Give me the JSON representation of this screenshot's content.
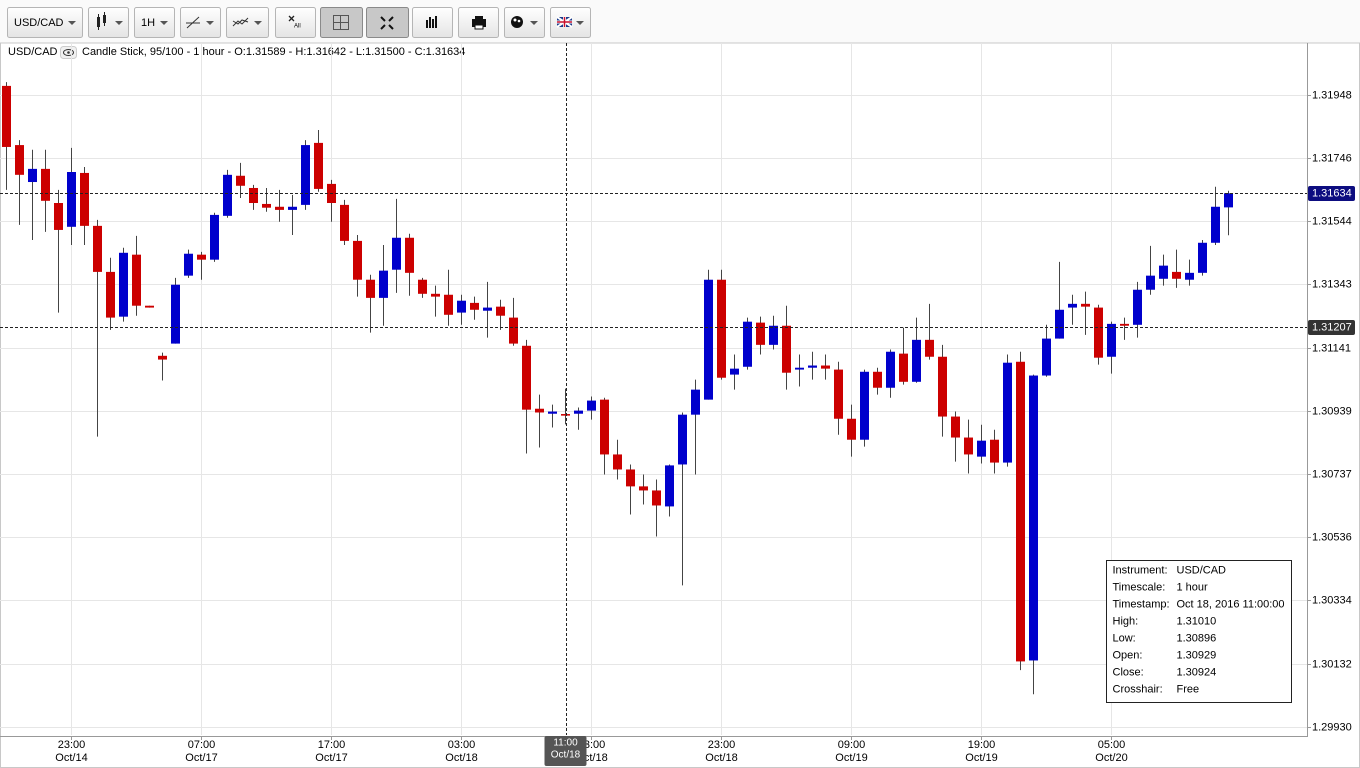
{
  "toolbar": {
    "instrument": "USD/CAD",
    "timeframe": "1H",
    "clear_label": "All"
  },
  "chart_data": {
    "type": "candlestick",
    "instrument": "USD/CAD",
    "subtitle": "Candle Stick, 95/100 - 1 hour - O:1.31589 - H:1.31642 - L:1.31500 - C:1.31634",
    "up_color": "#0000cc",
    "down_color": "#cc0000",
    "wick_color": "#444444",
    "open": [
      1.31977,
      1.31788,
      1.3167,
      1.31712,
      1.31603,
      1.31527,
      1.31699,
      1.3153,
      1.31383,
      1.3124,
      1.31438,
      1.31275,
      1.31115,
      1.31154,
      1.31371,
      1.31438,
      1.31422,
      1.31562,
      1.3169,
      1.31651,
      1.316,
      1.31591,
      1.31581,
      1.31597,
      1.31795,
      1.31664,
      1.31597,
      1.31482,
      1.31358,
      1.313,
      1.3139,
      1.31492,
      1.31358,
      1.31313,
      1.3131,
      1.31253,
      1.31284,
      1.31259,
      1.31272,
      1.31237,
      1.31147,
      1.30946,
      1.3093,
      1.30929,
      1.3093,
      1.3094,
      1.30975,
      1.308,
      1.30752,
      1.30698,
      1.30685,
      1.30634,
      1.30768,
      1.30927,
      1.30975,
      1.31358,
      1.31055,
      1.3108,
      1.31221,
      1.3115,
      1.31211,
      1.31071,
      1.31077,
      1.31084,
      1.31071,
      1.30914,
      1.30847,
      1.31064,
      1.31013,
      1.31122,
      1.31032,
      1.31166,
      1.31112,
      1.30921,
      1.30854,
      1.30793,
      1.30847,
      1.30774,
      1.31096,
      1.30142,
      1.31052,
      1.3117,
      1.31269,
      1.31281,
      1.31269,
      1.31112,
      1.31217,
      1.31214,
      1.31326,
      1.31361,
      1.31383,
      1.31358,
      1.3138,
      1.31476,
      1.31589
    ],
    "high": [
      1.31989,
      1.31804,
      1.31773,
      1.31773,
      1.31645,
      1.31779,
      1.31718,
      1.31549,
      1.31428,
      1.3146,
      1.31498,
      1.31275,
      1.31125,
      1.31364,
      1.31454,
      1.31447,
      1.31572,
      1.31709,
      1.31731,
      1.31661,
      1.31651,
      1.31645,
      1.31629,
      1.31804,
      1.31836,
      1.31677,
      1.31613,
      1.31501,
      1.31374,
      1.31469,
      1.31616,
      1.31505,
      1.31364,
      1.31339,
      1.3139,
      1.3131,
      1.31304,
      1.31351,
      1.31294,
      1.313,
      1.31166,
      1.30991,
      1.30959,
      1.3101,
      1.3095,
      1.30985,
      1.30981,
      1.30847,
      1.30768,
      1.30736,
      1.3072,
      1.30768,
      1.30934,
      1.31039,
      1.3139,
      1.3139,
      1.31119,
      1.31237,
      1.3124,
      1.31243,
      1.31275,
      1.31119,
      1.31128,
      1.31119,
      1.31096,
      1.30959,
      1.31071,
      1.31077,
      1.31135,
      1.31205,
      1.31237,
      1.31281,
      1.3115,
      1.30937,
      1.30911,
      1.30895,
      1.30879,
      1.31119,
      1.31128,
      1.31055,
      1.31214,
      1.31415,
      1.3131,
      1.3132,
      1.31278,
      1.31224,
      1.31237,
      1.31351,
      1.31466,
      1.31438,
      1.31454,
      1.31422,
      1.31485,
      1.31655,
      1.31642
    ],
    "low": [
      1.31645,
      1.31533,
      1.31485,
      1.31511,
      1.31253,
      1.31469,
      1.31469,
      1.30857,
      1.31198,
      1.31224,
      1.31243,
      1.31269,
      1.31036,
      1.31154,
      1.31364,
      1.31358,
      1.31415,
      1.31556,
      1.31619,
      1.31581,
      1.31575,
      1.31543,
      1.31501,
      1.31581,
      1.31639,
      1.31543,
      1.31469,
      1.31304,
      1.31189,
      1.31211,
      1.31316,
      1.31307,
      1.313,
      1.3124,
      1.31211,
      1.31214,
      1.3123,
      1.31173,
      1.31198,
      1.31147,
      1.30803,
      1.30822,
      1.30886,
      1.30896,
      1.30879,
      1.30911,
      1.30736,
      1.3072,
      1.30608,
      1.3064,
      1.30538,
      1.30602,
      1.30382,
      1.30736,
      1.30975,
      1.31039,
      1.31007,
      1.31071,
      1.31119,
      1.31135,
      1.31007,
      1.31017,
      1.31039,
      1.31039,
      1.30863,
      1.30793,
      1.30825,
      1.30991,
      1.30981,
      1.31023,
      1.31029,
      1.31103,
      1.30857,
      1.30777,
      1.30739,
      1.30771,
      1.30739,
      1.30761,
      1.30111,
      1.30034,
      1.31048,
      1.3117,
      1.31214,
      1.31182,
      1.31087,
      1.31058,
      1.31166,
      1.31173,
      1.3131,
      1.31339,
      1.31332,
      1.31339,
      1.31371,
      1.31469,
      1.315
    ],
    "close": [
      1.31782,
      1.31693,
      1.31712,
      1.3161,
      1.31517,
      1.31702,
      1.3153,
      1.31383,
      1.31237,
      1.31444,
      1.31275,
      1.31269,
      1.31103,
      1.31342,
      1.31441,
      1.31422,
      1.31565,
      1.31693,
      1.31658,
      1.31603,
      1.31588,
      1.31581,
      1.31591,
      1.31788,
      1.31648,
      1.31603,
      1.31482,
      1.31358,
      1.313,
      1.31387,
      1.31492,
      1.3138,
      1.31313,
      1.31304,
      1.31246,
      1.31291,
      1.31262,
      1.31269,
      1.31243,
      1.31154,
      1.30943,
      1.30934,
      1.30937,
      1.30924,
      1.3094,
      1.30972,
      1.308,
      1.30752,
      1.30698,
      1.30685,
      1.30637,
      1.30765,
      1.30927,
      1.31007,
      1.31358,
      1.31045,
      1.31074,
      1.31224,
      1.3115,
      1.31211,
      1.31061,
      1.31077,
      1.31084,
      1.31074,
      1.30914,
      1.30847,
      1.31064,
      1.31013,
      1.31128,
      1.31032,
      1.31166,
      1.31112,
      1.30921,
      1.30854,
      1.308,
      1.30844,
      1.30774,
      1.31093,
      1.30139,
      1.31052,
      1.3117,
      1.31262,
      1.31281,
      1.31272,
      1.31109,
      1.31217,
      1.31211,
      1.31326,
      1.31371,
      1.31403,
      1.31361,
      1.3138,
      1.31476,
      1.31591,
      1.31634
    ],
    "ylim": [
      1.29904,
      1.32114
    ],
    "yticks": [
      {
        "value": 1.2993,
        "label": "1.29930"
      },
      1.30132,
      1.30334,
      1.30536,
      1.30737,
      1.30939,
      1.31141,
      1.31343,
      1.31544,
      1.31746,
      1.31948
    ],
    "xticks": [
      {
        "value": 5,
        "label": "23:00",
        "date": "Oct/14"
      },
      {
        "value": 15,
        "label": "07:00",
        "date": "Oct/17"
      },
      {
        "value": 25,
        "label": "17:00",
        "date": "Oct/17"
      },
      {
        "value": 35,
        "label": "03:00",
        "date": "Oct/18"
      },
      {
        "value": 45,
        "label": "13:00",
        "date": "Oct/18"
      },
      {
        "value": 55,
        "label": "23:00",
        "date": "Oct/18"
      },
      {
        "value": 65,
        "label": "09:00",
        "date": "Oct/19"
      },
      {
        "value": 75,
        "label": "19:00",
        "date": "Oct/19"
      },
      {
        "value": 85,
        "label": "05:00",
        "date": "Oct/20"
      }
    ],
    "grid": true,
    "last_price": 1.31634,
    "crosshair": {
      "index": 43,
      "price": 1.31207,
      "time": "11:00",
      "date": "Oct/18"
    },
    "info_box": [
      [
        "Instrument:",
        "USD/CAD"
      ],
      [
        "Timescale:",
        "1 hour"
      ],
      [
        "Timestamp:",
        "Oct 18, 2016 11:00:00"
      ],
      [
        "High:",
        "1.31010"
      ],
      [
        "Low:",
        "1.30896"
      ],
      [
        "Open:",
        "1.30929"
      ],
      [
        "Close:",
        "1.30924"
      ],
      [
        "Crosshair:",
        "Free"
      ]
    ]
  }
}
